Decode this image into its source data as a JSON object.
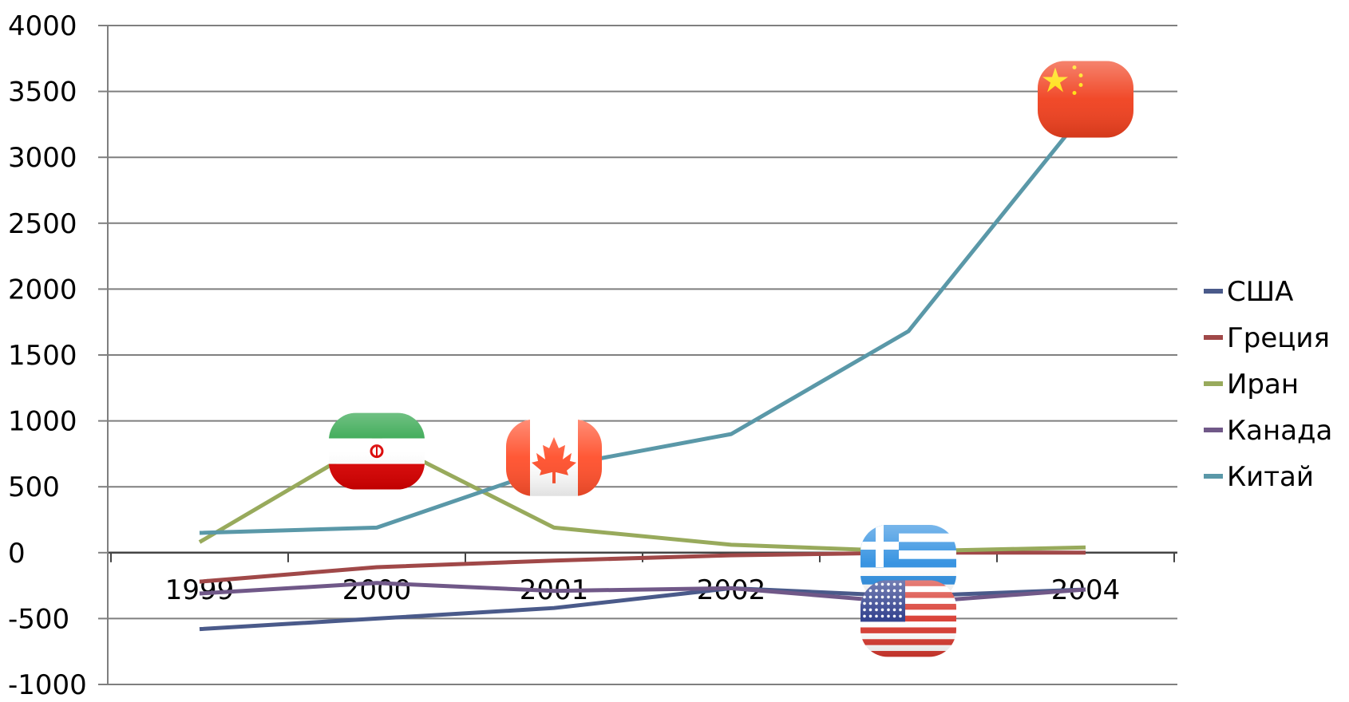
{
  "chart_data": {
    "type": "line",
    "x": [
      "1999",
      "2000",
      "2001",
      "2002",
      "2003",
      "2004"
    ],
    "ylim": [
      -1000,
      4000
    ],
    "yticks": [
      4000,
      3500,
      3000,
      2500,
      2000,
      1500,
      1000,
      500,
      0,
      -500,
      -1000
    ],
    "grid": true,
    "legend_position": "right",
    "series": [
      {
        "name": "США",
        "color": "#4a5a8a",
        "values": [
          -580,
          -500,
          -420,
          -270,
          -330,
          -280
        ]
      },
      {
        "name": "Греция",
        "color": "#a04848",
        "values": [
          -220,
          -110,
          -60,
          -20,
          0,
          0
        ]
      },
      {
        "name": "Иран",
        "color": "#98aa5c",
        "values": [
          80,
          870,
          190,
          60,
          10,
          40
        ]
      },
      {
        "name": "Канада",
        "color": "#705888",
        "values": [
          -310,
          -230,
          -290,
          -270,
          -380,
          -280
        ]
      },
      {
        "name": "Китай",
        "color": "#5a98a8",
        "values": [
          150,
          190,
          650,
          900,
          1680,
          3350
        ]
      }
    ],
    "flag_icons": [
      {
        "name": "iran-flag-icon",
        "x": "2000",
        "y": 770
      },
      {
        "name": "canada-flag-icon",
        "x": "2001",
        "y": 720
      },
      {
        "name": "china-flag-icon",
        "x": "2004",
        "y": 3440
      },
      {
        "name": "greece-flag-icon",
        "x": "2003",
        "y": -80
      },
      {
        "name": "usa-flag-icon",
        "x": "2003",
        "y": -500
      }
    ]
  }
}
